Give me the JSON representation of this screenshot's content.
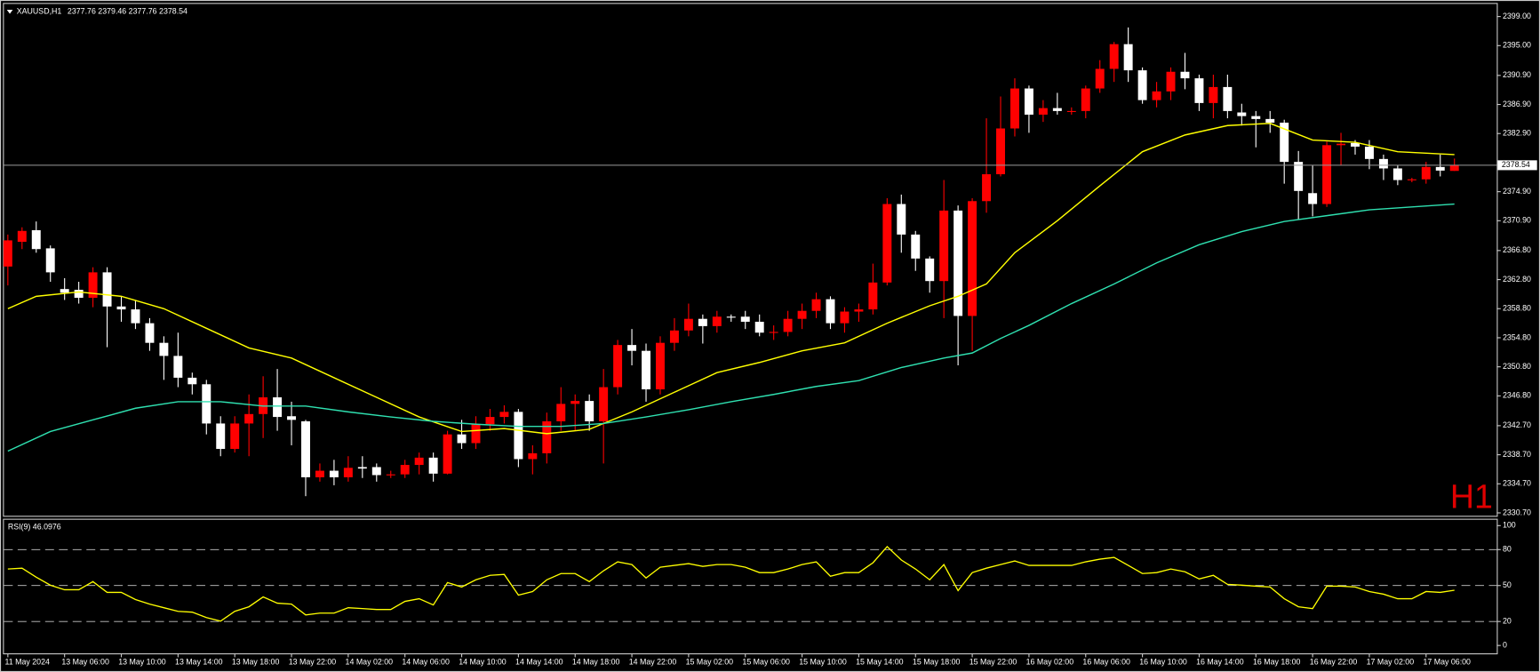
{
  "chart_data": {
    "type": "candlestick",
    "symbol": "XAUUSD,H1",
    "period_label": "H1",
    "up_color": "#ff0000",
    "down_color": "#ffffff",
    "categories": [
      "11 May 2024",
      null,
      null,
      null,
      "13 May 06:00",
      null,
      null,
      null,
      "13 May 10:00",
      null,
      null,
      null,
      "13 May 14:00",
      null,
      null,
      null,
      "13 May 18:00",
      null,
      null,
      null,
      "13 May 22:00",
      null,
      null,
      null,
      "14 May 02:00",
      null,
      null,
      null,
      "14 May 06:00",
      null,
      null,
      null,
      "14 May 10:00",
      null,
      null,
      null,
      "14 May 14:00",
      null,
      null,
      null,
      "14 May 18:00",
      null,
      null,
      null,
      "14 May 22:00",
      null,
      null,
      null,
      "15 May 02:00",
      null,
      null,
      null,
      "15 May 06:00",
      null,
      null,
      null,
      "15 May 10:00",
      null,
      null,
      null,
      "15 May 14:00",
      null,
      null,
      null,
      "15 May 18:00",
      null,
      null,
      null,
      "15 May 22:00",
      null,
      null,
      null,
      "16 May 02:00",
      null,
      null,
      null,
      "16 May 06:00",
      null,
      null,
      null,
      "16 May 10:00",
      null,
      null,
      null,
      "16 May 14:00",
      null,
      null,
      null,
      "16 May 18:00",
      null,
      null,
      null,
      "16 May 22:00",
      null,
      null,
      null,
      "17 May 02:00",
      null,
      null,
      null,
      "17 May 06:00",
      null,
      null
    ],
    "open": [
      2364.6,
      2368.0,
      2369.6,
      2367.1,
      2361.5,
      2361.4,
      2360.3,
      2363.8,
      2359.1,
      2358.7,
      2356.8,
      2354.1,
      2352.3,
      2349.3,
      2348.4,
      2343.0,
      2339.5,
      2343.0,
      2344.3,
      2346.6,
      2344,
      2343.3,
      2335.6,
      2336.5,
      2335.6,
      2337,
      2337,
      2335.9,
      2336.0,
      2337.3,
      2338.3,
      2336.1,
      2341.5,
      2340.3,
      2342.9,
      2343.9,
      2344.6,
      2338.1,
      2338.9,
      2343.3,
      2345.7,
      2346.1,
      2343.3,
      2348.0,
      2353.8,
      2353.0,
      2347.7,
      2354.1,
      2355.8,
      2357.4,
      2356.4,
      2357.7,
      2357.7,
      2357.0,
      2355.5,
      2355.6,
      2357.4,
      2358.5,
      2360.1,
      2356.8,
      2358.4,
      2358.7,
      2362.4,
      2373.2,
      2369.0,
      2365.7,
      2362.6,
      2372.3,
      2357.8,
      2373.6,
      2377.3,
      2383.6,
      2389.1,
      2385.5,
      2386.4,
      2385.9,
      2386.0,
      2389.1,
      2391.8,
      2395.2,
      2391.6,
      2387.5,
      2388.7,
      2391.4,
      2390.5,
      2387.1,
      2389.3,
      2385.8,
      2385.3,
      2384.9,
      2384.4,
      2379.0,
      2374.7,
      2373.2,
      2381.3,
      2381.6,
      2381.1,
      2379.4,
      2378.1,
      2376.5,
      2376.6,
      2378.3,
      2377.76
    ],
    "high": [
      2369,
      2370,
      2370.8,
      2367.5,
      2363,
      2362.5,
      2364.5,
      2364.5,
      2360.5,
      2360,
      2357.5,
      2355,
      2355.5,
      2350,
      2349,
      2344,
      2344,
      2347,
      2349.5,
      2350.5,
      2346,
      2343.5,
      2337.5,
      2338,
      2338.5,
      2338.5,
      2337.5,
      2336.5,
      2338,
      2339,
      2339,
      2342,
      2343.5,
      2344,
      2345,
      2345.5,
      2345,
      2340,
      2344.5,
      2348,
      2347,
      2347,
      2350.5,
      2354.5,
      2356,
      2354,
      2355,
      2357.5,
      2359.5,
      2358,
      2358.5,
      2358,
      2358.5,
      2358,
      2356.5,
      2358.5,
      2359.5,
      2361,
      2360.5,
      2359,
      2359.5,
      2365,
      2374,
      2374.5,
      2369.5,
      2366,
      2376.5,
      2373,
      2374,
      2385,
      2388,
      2390.5,
      2389.5,
      2387.5,
      2388.5,
      2386.5,
      2389.5,
      2393,
      2395.5,
      2397.5,
      2392,
      2390,
      2392,
      2394,
      2391,
      2391,
      2391,
      2387,
      2386,
      2386,
      2384.8,
      2380.5,
      2378.5,
      2381.8,
      2383,
      2382,
      2382,
      2380,
      2378.5,
      2376.8,
      2379,
      2380,
      2379.46
    ],
    "low": [
      2362,
      2367,
      2366.5,
      2362.5,
      2360,
      2359.5,
      2359,
      2353.5,
      2357,
      2356,
      2353,
      2349,
      2348,
      2347,
      2341.5,
      2338.5,
      2339,
      2338.5,
      2341,
      2342,
      2340,
      2333,
      2335,
      2334.5,
      2335,
      2335.5,
      2335,
      2335.5,
      2335.5,
      2336,
      2335,
      2336,
      2339.5,
      2339.5,
      2342,
      2343,
      2337,
      2336,
      2337.5,
      2342,
      2342,
      2342,
      2337.5,
      2347,
      2351,
      2346,
      2347,
      2353,
      2355,
      2354,
      2355.5,
      2357,
      2356,
      2355,
      2354.5,
      2355,
      2356,
      2357.5,
      2356,
      2355.5,
      2357,
      2358,
      2362,
      2366.5,
      2364,
      2361,
      2357.5,
      2351,
      2353,
      2372,
      2377,
      2382.5,
      2383,
      2384.5,
      2385.5,
      2385.5,
      2385,
      2388.5,
      2390,
      2390,
      2387,
      2386.5,
      2387.5,
      2389,
      2386,
      2385,
      2385,
      2384,
      2381,
      2383,
      2376,
      2371,
      2371.5,
      2372.8,
      2378.5,
      2380,
      2378,
      2376.5,
      2375.8,
      2376.2,
      2376,
      2377,
      2377.76
    ],
    "close": [
      2368.2,
      2369.5,
      2367.0,
      2363.8,
      2361.0,
      2360.3,
      2363.8,
      2359.1,
      2358.7,
      2356.8,
      2354.1,
      2352.3,
      2349.3,
      2348.4,
      2343.0,
      2339.5,
      2343.0,
      2344.3,
      2346.6,
      2343.9,
      2343.5,
      2335.6,
      2336.5,
      2335.6,
      2336.9,
      2336.8,
      2335.9,
      2336.0,
      2337.3,
      2338.3,
      2336.1,
      2341.5,
      2340.3,
      2342.9,
      2343.9,
      2344.6,
      2338.1,
      2338.9,
      2343.3,
      2345.7,
      2346.1,
      2343.3,
      2348.0,
      2353.8,
      2353.0,
      2347.7,
      2354.1,
      2355.8,
      2357.4,
      2356.4,
      2357.7,
      2357.7,
      2357.0,
      2355.5,
      2355.6,
      2357.4,
      2358.5,
      2360.1,
      2356.8,
      2358.4,
      2358.7,
      2362.4,
      2373.2,
      2369.0,
      2365.7,
      2362.6,
      2372.3,
      2357.8,
      2373.6,
      2377.3,
      2383.6,
      2389.1,
      2385.5,
      2386.4,
      2386.0,
      2386.0,
      2389.1,
      2391.8,
      2395.2,
      2391.6,
      2387.5,
      2388.7,
      2391.4,
      2390.5,
      2387.1,
      2389.3,
      2386.0,
      2385.3,
      2384.9,
      2384.4,
      2379.0,
      2375.0,
      2373.2,
      2381.3,
      2381.5,
      2381.1,
      2379.4,
      2378.1,
      2376.5,
      2376.6,
      2378.3,
      2377.8,
      2378.54
    ],
    "moving_averages": [
      {
        "color": "#ffff00",
        "x": [
          0,
          2,
          5,
          8,
          11,
          14,
          17,
          20,
          23,
          26,
          29,
          32,
          35,
          38,
          41,
          44,
          47,
          50,
          53,
          56,
          59,
          62,
          65,
          67,
          69,
          71,
          74,
          77,
          80,
          83,
          86,
          89,
          92,
          95,
          98,
          102
        ],
        "values": [
          2358.8,
          2360.5,
          2361.1,
          2360.5,
          2358.8,
          2356.1,
          2353.4,
          2352.0,
          2349.3,
          2346.6,
          2343.9,
          2341.9,
          2342.3,
          2341.6,
          2342.2,
          2344.6,
          2347.3,
          2350.0,
          2351.4,
          2353.0,
          2354.1,
          2356.8,
          2359.2,
          2360.5,
          2362.2,
          2366.5,
          2370.9,
          2375.7,
          2380.4,
          2382.7,
          2384.0,
          2384.3,
          2382.0,
          2381.7,
          2380.4,
          2380.0
        ]
      },
      {
        "color": "#2fe0b0",
        "x": [
          0,
          3,
          6,
          9,
          12,
          15,
          18,
          21,
          24,
          27,
          30,
          33,
          36,
          39,
          42,
          45,
          48,
          51,
          54,
          57,
          60,
          63,
          66,
          68,
          70,
          72,
          75,
          78,
          81,
          84,
          87,
          90,
          93,
          96,
          99,
          102
        ],
        "values": [
          2339.2,
          2341.9,
          2343.5,
          2345.1,
          2346.0,
          2346.0,
          2345.4,
          2345.4,
          2344.6,
          2343.9,
          2343.3,
          2342.9,
          2342.6,
          2342.6,
          2343.0,
          2343.9,
          2344.9,
          2346.0,
          2347.0,
          2348.1,
          2348.9,
          2350.7,
          2352.0,
          2352.7,
          2354.7,
          2356.5,
          2359.5,
          2362.2,
          2365.1,
          2367.6,
          2369.4,
          2370.8,
          2371.6,
          2372.4,
          2372.8,
          2373.2
        ]
      }
    ],
    "ylim": [
      2330.3,
      2400.6
    ],
    "yticks": [
      {
        "value": 2399,
        "label": "2399.00"
      },
      {
        "value": 2395,
        "label": "2395.00"
      },
      {
        "value": 2390.9,
        "label": "2390.90"
      },
      {
        "value": 2386.9,
        "label": "2386.90"
      },
      {
        "value": 2382.9,
        "label": "2382.90"
      },
      {
        "value": 2374.9,
        "label": "2374.90"
      },
      {
        "value": 2370.9,
        "label": "2370.90"
      },
      {
        "value": 2366.8,
        "label": "2366.80"
      },
      {
        "value": 2362.8,
        "label": "2362.80"
      },
      {
        "value": 2358.8,
        "label": "2358.80"
      },
      {
        "value": 2354.8,
        "label": "2354.80"
      },
      {
        "value": 2350.8,
        "label": "2350.80"
      },
      {
        "value": 2346.8,
        "label": "2346.80"
      },
      {
        "value": 2342.7,
        "label": "2342.70"
      },
      {
        "value": 2338.7,
        "label": "2338.70"
      },
      {
        "value": 2334.7,
        "label": "2334.70"
      },
      {
        "value": 2330.7,
        "label": "2330.70"
      }
    ],
    "rsi": {
      "label": "RSI(9)",
      "color": "#ffff00",
      "ylim": [
        0,
        100
      ],
      "yticks": [
        100,
        80,
        50,
        20,
        0
      ],
      "dashed_levels": [
        80,
        50,
        20
      ],
      "values": [
        63.8,
        64.5,
        57.0,
        50.3,
        46.5,
        46.5,
        53.3,
        44.3,
        44.3,
        38.3,
        34.5,
        31.5,
        28.5,
        27.8,
        23.3,
        20.3,
        28.5,
        32.3,
        40.5,
        35.3,
        34.5,
        25.5,
        27.0,
        27.0,
        31.5,
        30.8,
        30.0,
        30.0,
        36.8,
        39.0,
        33.8,
        52.5,
        48.8,
        54.8,
        58.5,
        59.3,
        42.0,
        45.0,
        54.8,
        60.0,
        60.0,
        53.3,
        62.3,
        69.8,
        67.5,
        56.3,
        65.3,
        66.8,
        68.3,
        66.0,
        67.5,
        67.5,
        65.3,
        60.8,
        60.8,
        63.8,
        67.5,
        69.8,
        57.8,
        60.8,
        60.8,
        69.0,
        82.5,
        71.3,
        63.8,
        54.8,
        67.5,
        45.8,
        60.8,
        64.5,
        67.5,
        70.5,
        66.8,
        66.8,
        66.8,
        66.8,
        69.8,
        72.0,
        73.5,
        66.8,
        60.0,
        60.8,
        63.8,
        61.5,
        55.5,
        58.5,
        51.0,
        50.3,
        49.5,
        48.8,
        39.0,
        32.3,
        30.8,
        49.5,
        49.5,
        48.8,
        45.0,
        42.8,
        39.0,
        39.0,
        45.0,
        44.3,
        46.0976
      ]
    }
  }
}
